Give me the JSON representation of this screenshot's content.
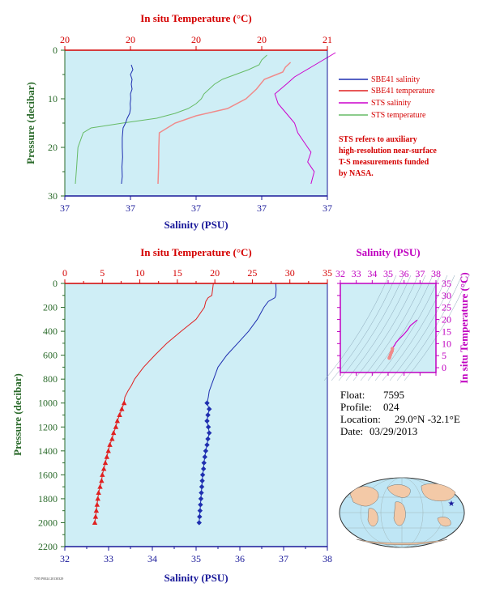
{
  "colors": {
    "plot_bg": "#cfeef6",
    "salinity": "#1f2fb0",
    "temperature": "#e02020",
    "temperature_fine": "#f08a8a",
    "sts_salinity": "#cc00cc",
    "sts_temperature": "#66bb66",
    "axis_red": "#d40000",
    "axis_blue": "#1a1a9a",
    "axis_green": "#2a6a2a",
    "axis_magenta": "#c000c0"
  },
  "info": {
    "float_label": "Float:",
    "float_value": "7595",
    "profile_label": "Profile:",
    "profile_value": "024",
    "location_label": "Location:",
    "location_value": "29.0°N -32.1°E",
    "date_label": "Date:",
    "date_value": "03/29/2013"
  },
  "footer_text": "7595 P0024 20130329",
  "chart_data": [
    {
      "id": "near-surface",
      "type": "line",
      "top_axis_title": "In situ Temperature (°C)",
      "bottom_axis_title": "Salinity (PSU)",
      "left_axis_title": "Pressure (decibar)",
      "top_ticks": [
        "20",
        "20",
        "20",
        "20",
        "21"
      ],
      "bottom_ticks": [
        "37",
        "37",
        "37",
        "37",
        "37"
      ],
      "left_ticks": [
        "0",
        "10",
        "20",
        "30"
      ],
      "temperature_range": [
        20.0,
        21.0
      ],
      "salinity_range": [
        36.98,
        37.14
      ],
      "pressure_range": [
        30,
        0
      ],
      "legend": [
        {
          "name": "SBE41 salinity",
          "color": "#1f2fb0"
        },
        {
          "name": "SBE41 temperature",
          "color": "#e02020"
        },
        {
          "name": "STS salinity",
          "color": "#cc00cc"
        },
        {
          "name": "STS temperature",
          "color": "#66bb66"
        }
      ],
      "note": [
        "STS refers to auxiliary",
        "high-resolution near-surface",
        "T-S measurements funded",
        "by NASA."
      ],
      "sbe41_salinity": {
        "pressure": [
          27.5,
          26,
          24,
          22,
          20,
          18,
          16,
          15,
          14,
          13,
          12,
          11,
          10,
          9,
          8,
          7,
          6,
          5,
          4,
          3
        ],
        "salinity": [
          37.0145,
          37.015,
          37.0148,
          37.0152,
          37.015,
          37.015,
          37.0155,
          37.017,
          37.018,
          37.0195,
          37.02,
          37.0198,
          37.0202,
          37.02,
          37.021,
          37.0205,
          37.021,
          37.02,
          37.0215,
          37.0205
        ]
      },
      "sbe41_temperature": {
        "pressure": [
          27.5,
          24,
          20,
          17,
          15,
          13.5,
          12,
          10,
          8,
          6,
          4.5,
          3.5,
          2.5
        ],
        "temperature": [
          20.355,
          20.357,
          20.358,
          20.36,
          20.42,
          20.5,
          20.62,
          20.69,
          20.73,
          20.76,
          20.83,
          20.84,
          20.86
        ]
      },
      "sts_salinity": {
        "pressure": [
          27.5,
          25,
          23,
          21,
          19,
          17,
          15,
          13,
          11,
          9,
          7,
          5.5,
          4.5,
          3.5,
          2.5,
          1.5,
          0.5
        ],
        "salinity": [
          37.13,
          37.132,
          37.128,
          37.13,
          37.126,
          37.122,
          37.12,
          37.115,
          37.11,
          37.108,
          37.115,
          37.12,
          37.125,
          37.13,
          37.135,
          37.14,
          37.145
        ]
      },
      "sts_temperature": {
        "pressure": [
          27.5,
          24,
          20,
          17,
          16,
          15,
          14,
          13,
          12,
          11,
          10,
          9,
          8,
          7,
          6,
          5,
          4,
          3,
          2,
          1
        ],
        "temperature": [
          20.04,
          20.045,
          20.05,
          20.07,
          20.1,
          20.22,
          20.35,
          20.42,
          20.47,
          20.5,
          20.52,
          20.53,
          20.55,
          20.57,
          20.6,
          20.65,
          20.7,
          20.74,
          20.75,
          20.77
        ]
      }
    },
    {
      "id": "full-profile",
      "type": "line",
      "top_axis_title": "In situ Temperature (°C)",
      "bottom_axis_title": "Salinity (PSU)",
      "left_axis_title": "Pressure (decibar)",
      "top_ticks": [
        0,
        5,
        10,
        15,
        20,
        25,
        30,
        35
      ],
      "bottom_ticks": [
        32,
        33,
        34,
        35,
        36,
        37,
        38
      ],
      "left_ticks": [
        0,
        200,
        400,
        600,
        800,
        1000,
        1200,
        1400,
        1600,
        1800,
        2000,
        2200
      ],
      "temperature_range": [
        0,
        35
      ],
      "salinity_range": [
        32,
        38
      ],
      "pressure_range": [
        2200,
        0
      ],
      "temperature": {
        "pressure": [
          0,
          50,
          100,
          120,
          150,
          200,
          300,
          400,
          500,
          600,
          700,
          800,
          850,
          900,
          950,
          1000,
          1050,
          1100,
          1150,
          1200,
          1250,
          1300,
          1350,
          1400,
          1450,
          1500,
          1550,
          1600,
          1650,
          1700,
          1750,
          1800,
          1850,
          1900,
          1950,
          2000
        ],
        "temperature": [
          19.8,
          19.7,
          19.6,
          19.1,
          18.8,
          18.6,
          17.5,
          15.5,
          13.6,
          12.0,
          10.5,
          9.3,
          8.9,
          8.4,
          8.0,
          7.9,
          7.6,
          7.3,
          7.0,
          6.8,
          6.5,
          6.3,
          6.0,
          5.8,
          5.6,
          5.4,
          5.2,
          5.0,
          4.9,
          4.7,
          4.5,
          4.4,
          4.3,
          4.2,
          4.1,
          4.0
        ]
      },
      "temperature_markers_from": 1000,
      "salinity": {
        "pressure": [
          0,
          50,
          100,
          120,
          150,
          200,
          300,
          400,
          500,
          600,
          700,
          800,
          850,
          900,
          950,
          1000,
          1050,
          1100,
          1150,
          1200,
          1250,
          1300,
          1350,
          1400,
          1450,
          1500,
          1550,
          1600,
          1650,
          1700,
          1750,
          1800,
          1850,
          1900,
          1950,
          2000
        ],
        "salinity": [
          36.82,
          36.83,
          36.82,
          36.8,
          36.65,
          36.55,
          36.4,
          36.2,
          35.95,
          35.7,
          35.5,
          35.4,
          35.35,
          35.3,
          35.28,
          35.25,
          35.3,
          35.27,
          35.25,
          35.28,
          35.3,
          35.27,
          35.25,
          35.22,
          35.2,
          35.18,
          35.17,
          35.15,
          35.14,
          35.13,
          35.12,
          35.11,
          35.1,
          35.09,
          35.08,
          35.07
        ]
      },
      "salinity_markers_from": 1000
    },
    {
      "id": "ts-diagram",
      "type": "scatter",
      "top_axis_title": "Salinity (PSU)",
      "right_axis_title": "In situ Temperature (°C)",
      "top_ticks": [
        32,
        33,
        34,
        35,
        36,
        37,
        38
      ],
      "right_ticks": [
        0,
        5,
        10,
        15,
        20,
        25,
        30,
        35
      ],
      "salinity_range": [
        32,
        38
      ],
      "temperature_range": [
        -2,
        35
      ],
      "profile": {
        "salinity": [
          36.82,
          36.6,
          36.4,
          36.2,
          35.95,
          35.7,
          35.5,
          35.4,
          35.3,
          35.27,
          35.25,
          35.2,
          35.15,
          35.1,
          35.07
        ],
        "temperature": [
          19.8,
          18.6,
          17.5,
          15.5,
          13.6,
          12.0,
          10.5,
          9.3,
          8.4,
          7.9,
          7.0,
          6.3,
          5.4,
          4.5,
          4.0
        ]
      }
    }
  ],
  "map": {
    "marker_label": "float position"
  }
}
